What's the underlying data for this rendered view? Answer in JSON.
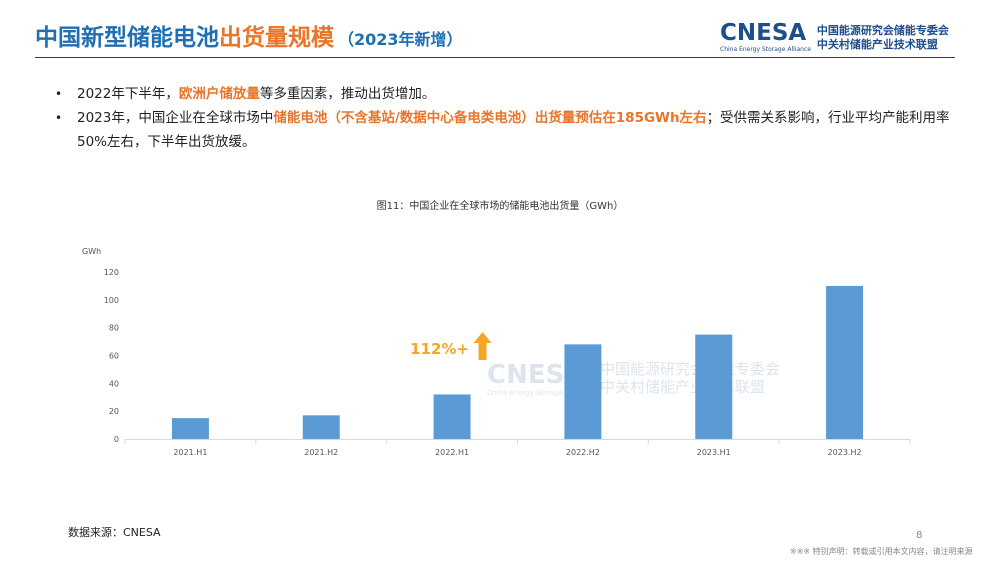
{
  "header": {
    "title_main": "中国新型储能电池",
    "title_highlight": "出货量规模",
    "title_sub": "（2023年新增）",
    "logo_word": "CNESA",
    "logo_en": "China Energy Storage Alliance",
    "logo_cn_line1": "中国能源研究会储能专委会",
    "logo_cn_line2": "中关村储能产业技术联盟"
  },
  "bullets": [
    {
      "marker": "•",
      "pre": "2022年下半年，",
      "hl": "欧洲户储放量",
      "post": "等多重因素，推动出货增加。"
    },
    {
      "marker": "•",
      "pre": "2023年，中国企业在全球市场中",
      "hl": "储能电池（不含基站/数据中心备电类电池）出货量预估在185GWh左右",
      "post": "；受供需关系影响，行业平均产能利用率50%左右，下半年出货放缓。"
    }
  ],
  "chart_title": "图11：中国企业在全球市场的储能电池出货量（GWh）",
  "chart_data": {
    "type": "bar",
    "categories": [
      "2021.H1",
      "2021.H2",
      "2022.H1",
      "2022.H2",
      "2023.H1",
      "2023.H2"
    ],
    "values": [
      15,
      17,
      32,
      68,
      75,
      110
    ],
    "ylabel": "GWh",
    "ylim": [
      0,
      120
    ],
    "yticks": [
      0,
      20,
      40,
      60,
      80,
      100,
      120
    ],
    "bar_color": "#5b9bd5",
    "annotation": "112%+",
    "annotation_color": "#f5a623",
    "watermark_word": "CNESA",
    "watermark_en": "China Energy Storage Alliance",
    "watermark_cn_line1": "中国能源研究会储能专委会",
    "watermark_cn_line2": "中关村储能产业技术联盟"
  },
  "footer": {
    "source": "数据来源：CNESA",
    "page_number": "8",
    "disclaimer": "※※※ 特别声明：转载或引用本文内容，请注明来源"
  },
  "colors": {
    "title_blue": "#1f6fb2",
    "accent_orange": "#e8752a",
    "logo_navy": "#1f4e8c"
  }
}
